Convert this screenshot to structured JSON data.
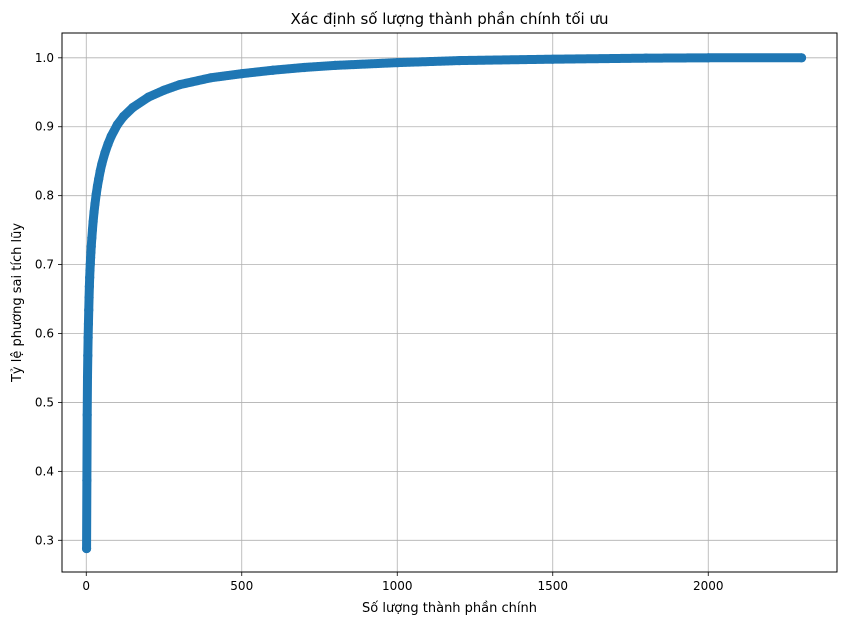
{
  "chart_data": {
    "type": "line",
    "title": "Xác định số lượng thành phần chính tối ưu",
    "xlabel": "Số lượng thành phần chính",
    "ylabel": "Tỷ lệ phương sai tích lũy",
    "xlim": [
      -78,
      2414
    ],
    "ylim": [
      0.254,
      1.036
    ],
    "xticks": [
      0,
      500,
      1000,
      1500,
      2000
    ],
    "xtick_labels": [
      "0",
      "500",
      "1000",
      "1500",
      "2000"
    ],
    "yticks": [
      0.3,
      0.4,
      0.5,
      0.6,
      0.7,
      0.8,
      0.9,
      1.0
    ],
    "ytick_labels": [
      "0.3",
      "0.4",
      "0.5",
      "0.6",
      "0.7",
      "0.8",
      "0.9",
      "1.0"
    ],
    "grid": true,
    "marker": "circle",
    "color": "#1f77b4",
    "series": [
      {
        "x": [
          1,
          2,
          3,
          4,
          5,
          6,
          7,
          8,
          9,
          10,
          11,
          12,
          13,
          14,
          15,
          16,
          18,
          20,
          22,
          25,
          28,
          32,
          36,
          40,
          45,
          50,
          60,
          70,
          80,
          100,
          120,
          150,
          200,
          250,
          300,
          400,
          500,
          600,
          700,
          800,
          1000,
          1200,
          1500,
          1800,
          2000,
          2300
        ],
        "y": [
          0.288,
          0.387,
          0.482,
          0.537,
          0.568,
          0.594,
          0.614,
          0.634,
          0.652,
          0.668,
          0.681,
          0.692,
          0.701,
          0.71,
          0.718,
          0.726,
          0.739,
          0.751,
          0.762,
          0.776,
          0.788,
          0.802,
          0.814,
          0.824,
          0.836,
          0.846,
          0.862,
          0.875,
          0.886,
          0.903,
          0.915,
          0.928,
          0.943,
          0.953,
          0.961,
          0.971,
          0.977,
          0.982,
          0.986,
          0.989,
          0.993,
          0.996,
          0.998,
          0.9995,
          1.0,
          1.0
        ]
      }
    ]
  }
}
